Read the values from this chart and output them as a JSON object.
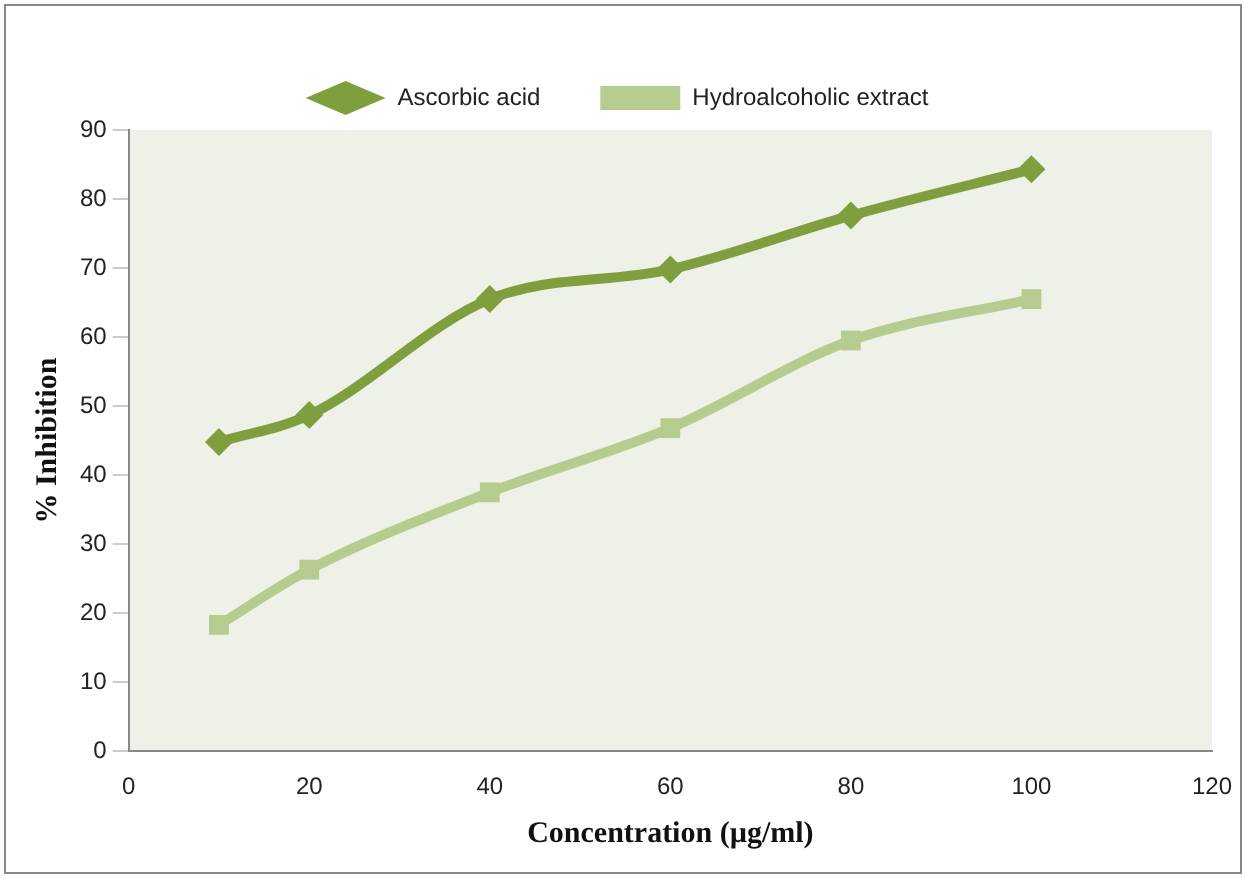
{
  "chart_data": {
    "type": "line",
    "xlabel": "Concentration (µg/ml)",
    "ylabel": "% Inhibition",
    "x": [
      10,
      20,
      40,
      60,
      80,
      100
    ],
    "series": [
      {
        "name": "Ascorbic acid",
        "color": "#7f9f3f",
        "marker": "diamond",
        "values": [
          44.8,
          48.7,
          65.5,
          69.8,
          77.6,
          84.3
        ]
      },
      {
        "name": "Hydroalcoholic extract",
        "color": "#b5cc8e",
        "marker": "square",
        "values": [
          18.3,
          26.3,
          37.5,
          46.8,
          59.5,
          65.5
        ]
      }
    ],
    "xlim": [
      0,
      120
    ],
    "xticks": [
      0,
      20,
      40,
      60,
      80,
      100,
      120
    ],
    "ylim": [
      0,
      90
    ],
    "yticks": [
      0,
      10,
      20,
      30,
      40,
      50,
      60,
      70,
      80,
      90
    ],
    "grid": false,
    "legend": "top"
  }
}
